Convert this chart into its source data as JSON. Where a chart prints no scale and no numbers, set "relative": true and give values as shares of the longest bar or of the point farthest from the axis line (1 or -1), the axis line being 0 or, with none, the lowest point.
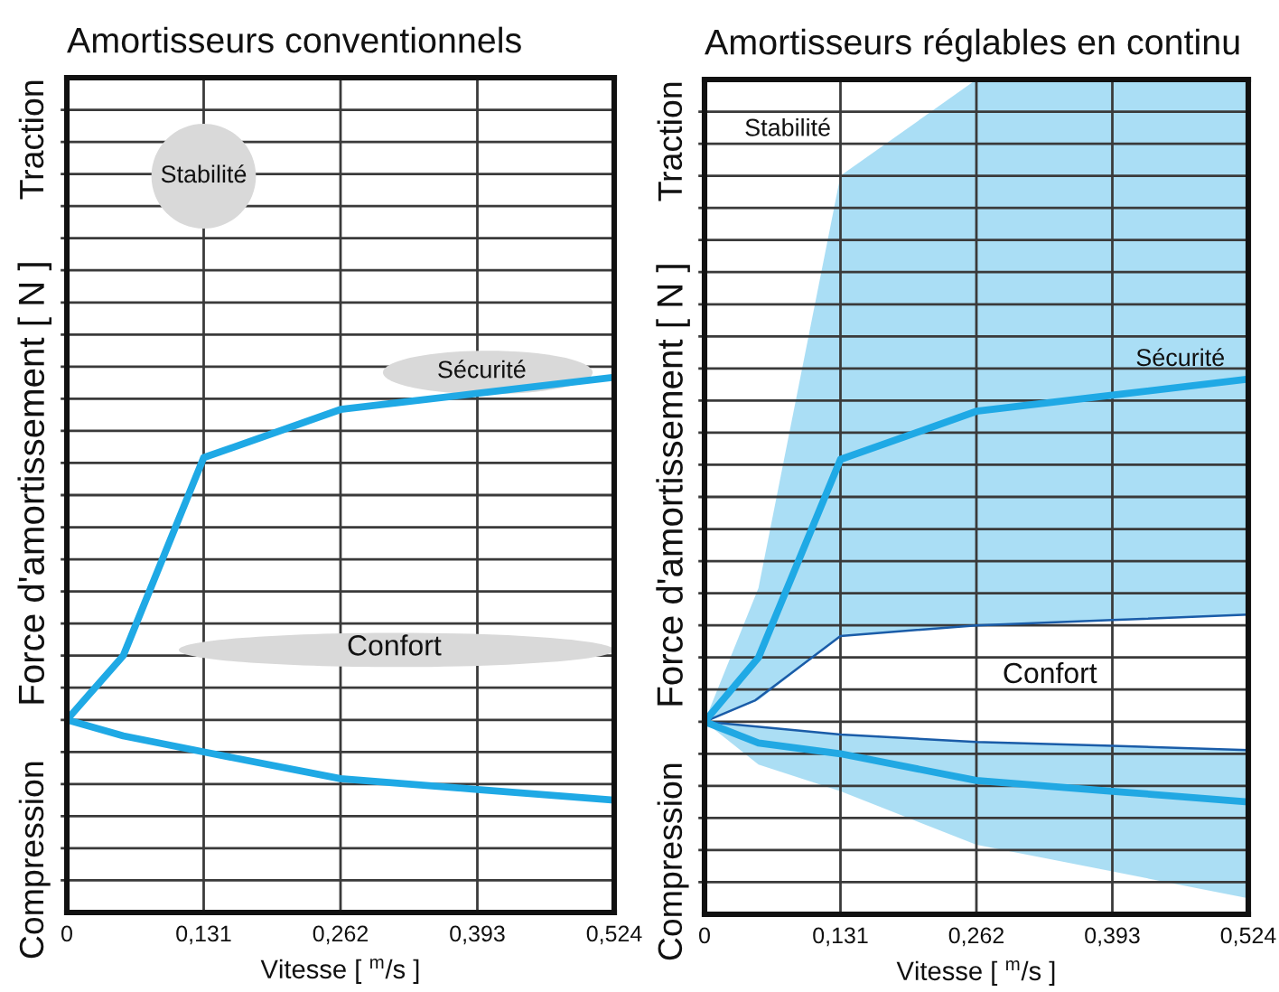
{
  "chart_data": [
    {
      "type": "line",
      "title": "Amortisseurs conventionnels",
      "xlabel": "Vitesse [ $^{m}$/s ]",
      "ylabel": "Force d'amortissement [ N ]",
      "annotations": [
        "Traction",
        "Compression",
        "Stabilité",
        "Sécurité",
        "Confort"
      ],
      "relative": true,
      "grid": true,
      "x": [
        0,
        0.054,
        0.131,
        0.262,
        0.393,
        0.524
      ],
      "xlim": [
        0,
        0.524
      ],
      "xticks": [
        0,
        {
          "value": 0.131,
          "label": "0,131"
        },
        {
          "value": 0.262,
          "label": "0,262"
        },
        {
          "value": 0.393,
          "label": "0,393"
        },
        {
          "value": 0.524,
          "label": "0,524"
        }
      ],
      "series": [
        {
          "color": "#1fa9e5",
          "values": [
            0.36,
            0.48,
            0.85,
            0.94,
            0.97,
            1
          ]
        },
        {
          "color": "#1fa9e5",
          "values": [
            0.36,
            0.33,
            0.3,
            0.25,
            0.23,
            0.21
          ]
        }
      ]
    },
    {
      "type": "line",
      "title": "Amortisseurs réglables en continu",
      "xlabel": "Vitesse [ $^{m}$/s ]",
      "ylabel": "Force d'amortissement [ N ]",
      "annotations": [
        "Traction",
        "Compression",
        "Stabilité",
        "Sécurité",
        "Confort"
      ],
      "relative": true,
      "grid": true,
      "xlim": [
        0,
        0.524
      ],
      "xticks": [
        0,
        {
          "value": 0.131,
          "label": "0,131"
        },
        {
          "value": 0.262,
          "label": "0,262"
        },
        {
          "value": 0.393,
          "label": "0,393"
        },
        {
          "value": 0.524,
          "label": "0,524"
        }
      ],
      "series": [
        {
          "color": "#1a5ca8",
          "x": [
            0,
            0.049,
            0.131,
            0.262,
            0.393,
            0.524
          ],
          "values": [
            0.36,
            0.4,
            0.52,
            0.54,
            0.55,
            0.56
          ]
        },
        {
          "color": "#1a5ca8",
          "x": [
            0,
            0.131,
            0.262,
            0.393,
            0.524
          ],
          "values": [
            0.36,
            0.336,
            0.322,
            0.315,
            0.307
          ]
        },
        {
          "color": "#1fa9e5",
          "x": [
            0,
            0.052,
            0.131,
            0.262,
            0.393,
            0.524
          ],
          "values": [
            0.36,
            0.48,
            0.85,
            0.94,
            0.97,
            1
          ],
          "lower": [
            0.36,
            0.4,
            0.52,
            0.54,
            0.55,
            0.56
          ],
          "upper": [
            0.36,
            0.61,
            1.38,
            1.56,
            1.56,
            1.56
          ]
        },
        {
          "color": "#21a8e3",
          "x": [
            0,
            0.052,
            0.131,
            0.262,
            0.393,
            0.524
          ],
          "values": [
            0.36,
            0.32,
            0.3,
            0.25,
            0.23,
            0.21
          ],
          "lower": [
            0.36,
            0.28,
            0.23,
            0.13,
            0.08,
            0.03
          ],
          "upper": [
            0.36,
            0.351,
            0.336,
            0.322,
            0.315,
            0.307
          ]
        }
      ]
    }
  ]
}
